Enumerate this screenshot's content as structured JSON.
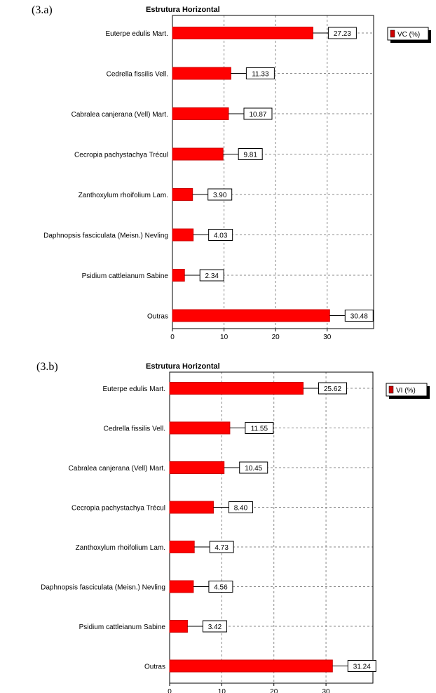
{
  "chart_data": [
    {
      "panel_label": "(3.a)",
      "type": "bar",
      "orientation": "horizontal",
      "title": "Estrutura Horizontal",
      "categories": [
        "Euterpe edulis Mart.",
        "Cedrella fissilis Vell.",
        "Cabralea canjerana (Vell) Mart.",
        "Cecropia pachystachya Trécul",
        "Zanthoxylum rhoifolium Lam.",
        "Daphnopsis fasciculata (Meisn.) Nevling",
        "Psidium cattleianum Sabine",
        "Outras"
      ],
      "series": [
        {
          "name": "VC (%)",
          "values": [
            27.23,
            11.33,
            10.87,
            9.81,
            3.9,
            4.03,
            2.34,
            30.48
          ],
          "labels": [
            "27.23",
            "11.33",
            "10.87",
            "9.81",
            "3.90",
            "4.03",
            "2.34",
            "30.48"
          ]
        }
      ],
      "xticks": [
        "0",
        "10",
        "20",
        "30"
      ],
      "xlim": [
        0,
        39
      ],
      "grid": true,
      "legend_position": "top-right",
      "colors": {
        "bar": "#ff0000",
        "bar_edge": "#cc0000",
        "legend_swatch": "#cc0000",
        "grid": "#8a8a8a"
      }
    },
    {
      "panel_label": "(3.b)",
      "type": "bar",
      "orientation": "horizontal",
      "title": "Estrutura Horizontal",
      "categories": [
        "Euterpe edulis Mart.",
        "Cedrella fissilis Vell.",
        "Cabralea canjerana (Vell) Mart.",
        "Cecropia pachystachya Trécul",
        "Zanthoxylum rhoifolium Lam.",
        "Daphnopsis fasciculata (Meisn.) Nevling",
        "Psidium cattleianum Sabine",
        "Outras"
      ],
      "series": [
        {
          "name": "VI (%)",
          "values": [
            25.62,
            11.55,
            10.45,
            8.4,
            4.73,
            4.56,
            3.42,
            31.24
          ],
          "labels": [
            "25.62",
            "11.55",
            "10.45",
            "8.40",
            "4.73",
            "4.56",
            "3.42",
            "31.24"
          ]
        }
      ],
      "xticks": [
        "0",
        "10",
        "20",
        "30"
      ],
      "xlim": [
        0,
        39
      ],
      "grid": true,
      "legend_position": "top-right",
      "colors": {
        "bar": "#ff0000",
        "bar_edge": "#cc0000",
        "legend_swatch": "#cc0000",
        "grid": "#8a8a8a"
      }
    }
  ]
}
